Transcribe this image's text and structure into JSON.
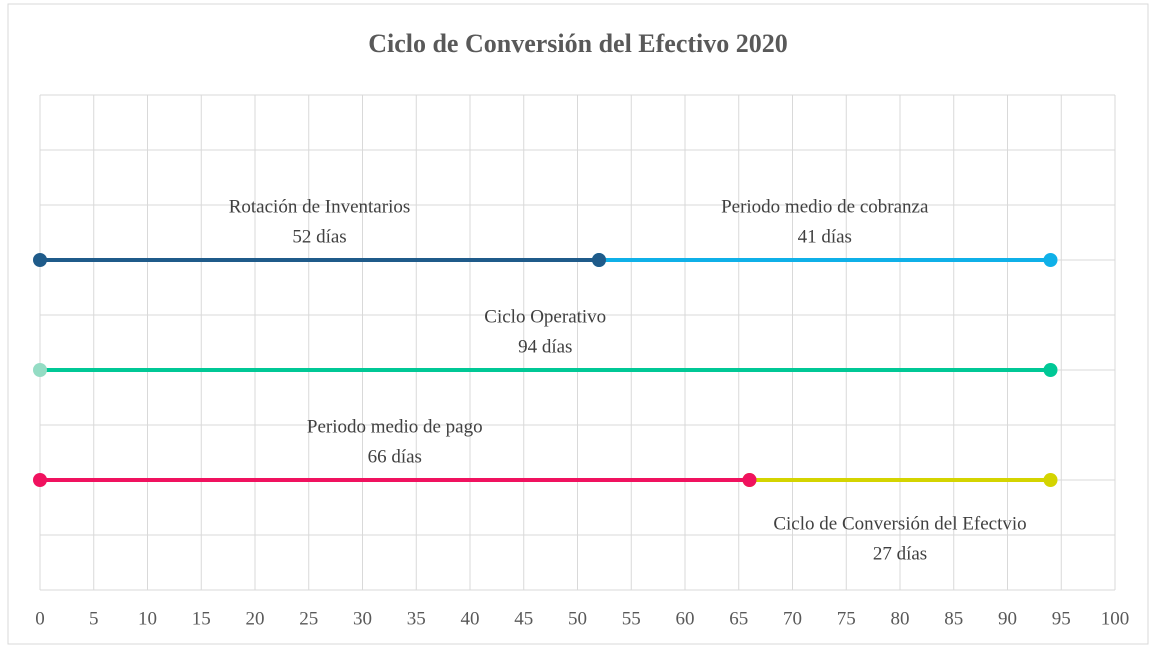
{
  "chart_data": {
    "type": "segments",
    "title": "Ciclo de Conversión del Efectivo  2020",
    "xlim": [
      0,
      100
    ],
    "xticks": [
      0,
      5,
      10,
      15,
      20,
      25,
      30,
      35,
      40,
      45,
      50,
      55,
      60,
      65,
      70,
      75,
      80,
      85,
      90,
      95,
      100
    ],
    "ylim": [
      0,
      9
    ],
    "yticks": [
      0,
      1,
      2,
      3,
      4,
      5,
      6,
      7,
      8,
      9
    ],
    "grid": true,
    "series": [
      {
        "label": [
          "Periodo medio de cobranza",
          "41 días"
        ],
        "color": "#0fb0e8",
        "x": [
          52,
          94
        ],
        "y": [
          6,
          6
        ],
        "label_position": "above"
      },
      {
        "label": [
          "Rotación de Inventarios",
          "52 días"
        ],
        "color": "#1f5b8a",
        "x": [
          0,
          52
        ],
        "y": [
          6,
          6
        ],
        "label_position": "above"
      },
      {
        "label": [
          "Ciclo Operativo",
          "94 días"
        ],
        "color": "#00c896",
        "marker_colors": [
          "#94dcc4",
          "#00c896"
        ],
        "x": [
          0,
          94
        ],
        "y": [
          4,
          4
        ],
        "label_position": "above"
      },
      {
        "label": [
          "Ciclo de Conversión del Efectvio",
          "27 días"
        ],
        "color": "#d4d400",
        "x": [
          66,
          94
        ],
        "y": [
          2,
          2
        ],
        "label_position": "below"
      },
      {
        "label": [
          "Periodo medio de pago",
          "66 días"
        ],
        "color": "#f0125f",
        "x": [
          0,
          66
        ],
        "y": [
          2,
          2
        ],
        "label_position": "above"
      }
    ]
  }
}
